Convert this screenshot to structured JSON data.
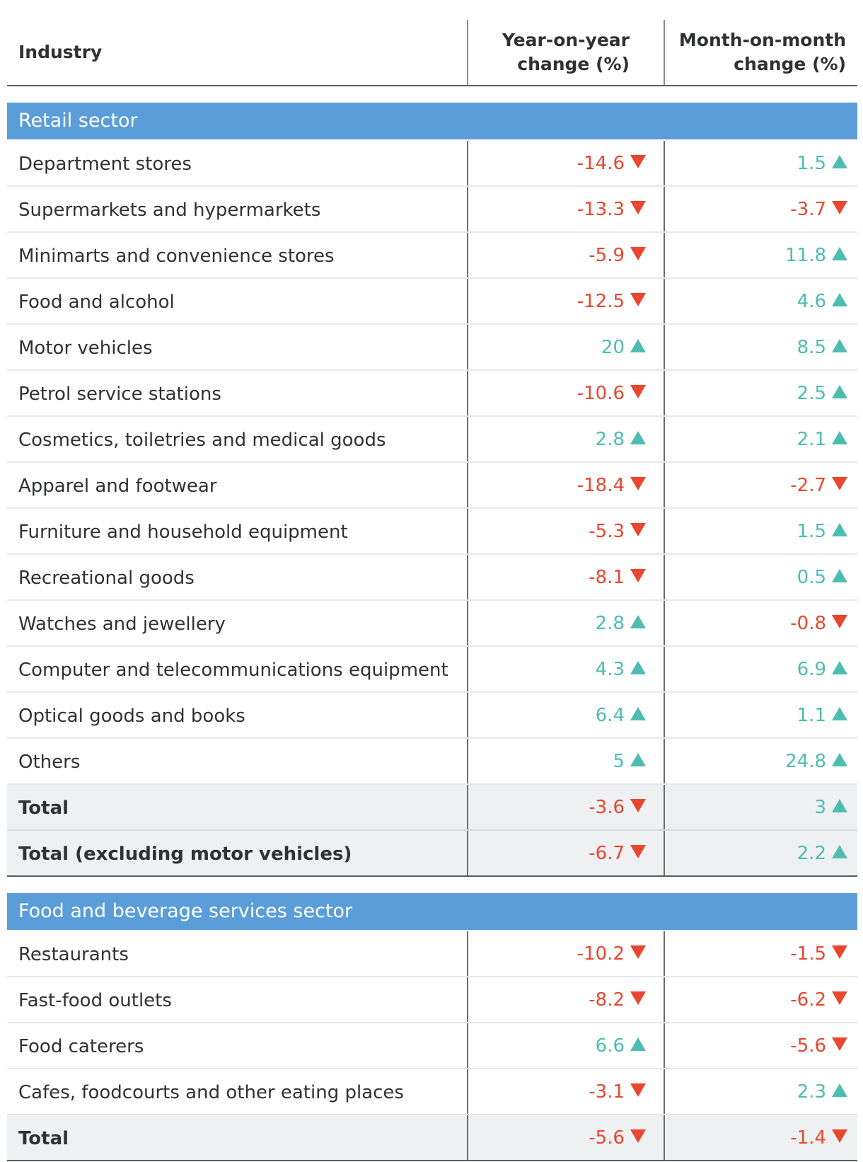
{
  "colors": {
    "negative": "#e8462f",
    "positive": "#4dbdb1",
    "section": "#5b9dd8",
    "total_bg": "#eef0f2"
  },
  "chart_data": {
    "type": "table",
    "columns": [
      "Industry",
      "Year-on-year change (%)",
      "Month-on-month change (%)"
    ],
    "header": {
      "industry": "Industry",
      "yoy_line1": "Year-on-year",
      "yoy_line2": "change (%)",
      "mom_line1": "Month-on-month",
      "mom_line2": "change (%)"
    },
    "sections": [
      {
        "title": "Retail sector",
        "rows": [
          {
            "industry": "Department stores",
            "yoy": "-14.6",
            "mom": "1.5",
            "total": false
          },
          {
            "industry": "Supermarkets and hypermarkets",
            "yoy": "-13.3",
            "mom": "-3.7",
            "total": false
          },
          {
            "industry": "Minimarts and convenience stores",
            "yoy": "-5.9",
            "mom": "11.8",
            "total": false
          },
          {
            "industry": "Food and alcohol",
            "yoy": "-12.5",
            "mom": "4.6",
            "total": false
          },
          {
            "industry": "Motor vehicles",
            "yoy": "20",
            "mom": "8.5",
            "total": false
          },
          {
            "industry": "Petrol service stations",
            "yoy": "-10.6",
            "mom": "2.5",
            "total": false
          },
          {
            "industry": "Cosmetics, toiletries and medical goods",
            "yoy": "2.8",
            "mom": "2.1",
            "total": false
          },
          {
            "industry": "Apparel and footwear",
            "yoy": "-18.4",
            "mom": "-2.7",
            "total": false
          },
          {
            "industry": "Furniture and household equipment",
            "yoy": "-5.3",
            "mom": "1.5",
            "total": false
          },
          {
            "industry": "Recreational goods",
            "yoy": "-8.1",
            "mom": "0.5",
            "total": false
          },
          {
            "industry": "Watches and jewellery",
            "yoy": "2.8",
            "mom": "-0.8",
            "total": false
          },
          {
            "industry": "Computer and telecommunications equipment",
            "yoy": "4.3",
            "mom": "6.9",
            "total": false
          },
          {
            "industry": "Optical goods and books",
            "yoy": "6.4",
            "mom": "1.1",
            "total": false
          },
          {
            "industry": "Others",
            "yoy": "5",
            "mom": "24.8",
            "total": false
          },
          {
            "industry": "Total",
            "yoy": "-3.6",
            "mom": "3",
            "total": true
          },
          {
            "industry": "Total (excluding motor vehicles)",
            "yoy": "-6.7",
            "mom": "2.2",
            "total": true
          }
        ]
      },
      {
        "title": "Food and beverage services sector",
        "rows": [
          {
            "industry": "Restaurants",
            "yoy": "-10.2",
            "mom": "-1.5",
            "total": false
          },
          {
            "industry": "Fast-food outlets",
            "yoy": "-8.2",
            "mom": "-6.2",
            "total": false
          },
          {
            "industry": "Food caterers",
            "yoy": "6.6",
            "mom": "-5.6",
            "total": false
          },
          {
            "industry": "Cafes, foodcourts and other eating places",
            "yoy": "-3.1",
            "mom": "2.3",
            "total": false
          },
          {
            "industry": "Total",
            "yoy": "-5.6",
            "mom": "-1.4",
            "total": true
          }
        ]
      }
    ]
  }
}
